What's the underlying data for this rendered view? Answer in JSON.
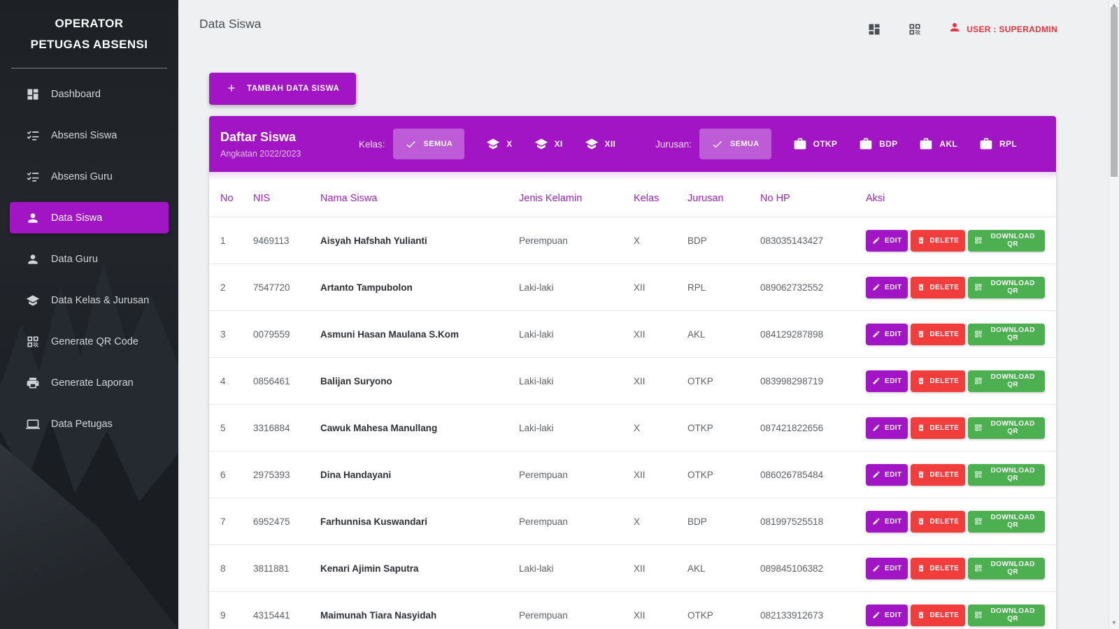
{
  "sidebar": {
    "title_line1": "OPERATOR",
    "title_line2": "PETUGAS ABSENSI",
    "items": [
      {
        "label": "Dashboard",
        "icon": "dashboard-icon",
        "active": false
      },
      {
        "label": "Absensi Siswa",
        "icon": "checklist-icon",
        "active": false
      },
      {
        "label": "Absensi Guru",
        "icon": "checklist-icon",
        "active": false
      },
      {
        "label": "Data Siswa",
        "icon": "person-icon",
        "active": true
      },
      {
        "label": "Data Guru",
        "icon": "person-icon",
        "active": false
      },
      {
        "label": "Data Kelas & Jurusan",
        "icon": "school-icon",
        "active": false
      },
      {
        "label": "Generate QR Code",
        "icon": "qr-icon",
        "active": false
      },
      {
        "label": "Generate Laporan",
        "icon": "printer-icon",
        "active": false
      },
      {
        "label": "Data Petugas",
        "icon": "laptop-icon",
        "active": false
      }
    ]
  },
  "topbar": {
    "page_title": "Data Siswa",
    "icons": [
      "dashboard-icon",
      "qr-icon"
    ],
    "user_icon": "user-icon",
    "user_label": "USER : SUPERADMIN"
  },
  "toolbar": {
    "add_button_label": "TAMBAH DATA SISWA",
    "add_button_icon": "plus-icon"
  },
  "filter_card": {
    "title": "Daftar Siswa",
    "subtitle": "Angkatan 2022/2023",
    "kelas_label": "Kelas:",
    "kelas_options": [
      {
        "label": "SEMUA",
        "selected": true,
        "icon": "check-icon"
      },
      {
        "label": "X",
        "selected": false,
        "icon": "school-icon"
      },
      {
        "label": "XI",
        "selected": false,
        "icon": "school-icon"
      },
      {
        "label": "XII",
        "selected": false,
        "icon": "school-icon"
      }
    ],
    "jurusan_label": "Jurusan:",
    "jurusan_options": [
      {
        "label": "SEMUA",
        "selected": true,
        "icon": "check-icon"
      },
      {
        "label": "OTKP",
        "selected": false,
        "icon": "briefcase-icon"
      },
      {
        "label": "BDP",
        "selected": false,
        "icon": "briefcase-icon"
      },
      {
        "label": "AKL",
        "selected": false,
        "icon": "briefcase-icon"
      },
      {
        "label": "RPL",
        "selected": false,
        "icon": "briefcase-icon"
      }
    ]
  },
  "table": {
    "headers": [
      "No",
      "NIS",
      "Nama Siswa",
      "Jenis Kelamin",
      "Kelas",
      "Jurusan",
      "No HP",
      "Aksi"
    ],
    "row_actions": {
      "edit": {
        "label": "EDIT",
        "icon": "pencil-icon"
      },
      "delete": {
        "label": "DELETE",
        "icon": "trash-icon"
      },
      "download": {
        "label": "DOWNLOAD QR",
        "icon": "qr-icon"
      }
    },
    "rows": [
      {
        "no": "1",
        "nis": "9469113",
        "nama": "Aisyah Hafshah Yulianti",
        "jenis_kelamin": "Perempuan",
        "kelas": "X",
        "jurusan": "BDP",
        "no_hp": "083035143427"
      },
      {
        "no": "2",
        "nis": "7547720",
        "nama": "Artanto Tampubolon",
        "jenis_kelamin": "Laki-laki",
        "kelas": "XII",
        "jurusan": "RPL",
        "no_hp": "089062732552"
      },
      {
        "no": "3",
        "nis": "0079559",
        "nama": "Asmuni Hasan Maulana S.Kom",
        "jenis_kelamin": "Laki-laki",
        "kelas": "XII",
        "jurusan": "AKL",
        "no_hp": "084129287898"
      },
      {
        "no": "4",
        "nis": "0856461",
        "nama": "Balijan Suryono",
        "jenis_kelamin": "Laki-laki",
        "kelas": "XII",
        "jurusan": "OTKP",
        "no_hp": "083998298719"
      },
      {
        "no": "5",
        "nis": "3316884",
        "nama": "Cawuk Mahesa Manullang",
        "jenis_kelamin": "Laki-laki",
        "kelas": "X",
        "jurusan": "OTKP",
        "no_hp": "087421822656"
      },
      {
        "no": "6",
        "nis": "2975393",
        "nama": "Dina Handayani",
        "jenis_kelamin": "Perempuan",
        "kelas": "XII",
        "jurusan": "OTKP",
        "no_hp": "086026785484"
      },
      {
        "no": "7",
        "nis": "6952475",
        "nama": "Farhunnisa Kuswandari",
        "jenis_kelamin": "Perempuan",
        "kelas": "X",
        "jurusan": "BDP",
        "no_hp": "081997525518"
      },
      {
        "no": "8",
        "nis": "3811881",
        "nama": "Kenari Ajimin Saputra",
        "jenis_kelamin": "Laki-laki",
        "kelas": "XII",
        "jurusan": "AKL",
        "no_hp": "089845106382"
      },
      {
        "no": "9",
        "nis": "4315441",
        "nama": "Maimunah Tiara Nasyidah",
        "jenis_kelamin": "Perempuan",
        "kelas": "XII",
        "jurusan": "OTKP",
        "no_hp": "082133912673"
      }
    ]
  },
  "colors": {
    "primary_purple": "#a215c4",
    "danger_red": "#f23d3d",
    "success_green": "#4caf50",
    "user_label_red": "#e63641"
  }
}
